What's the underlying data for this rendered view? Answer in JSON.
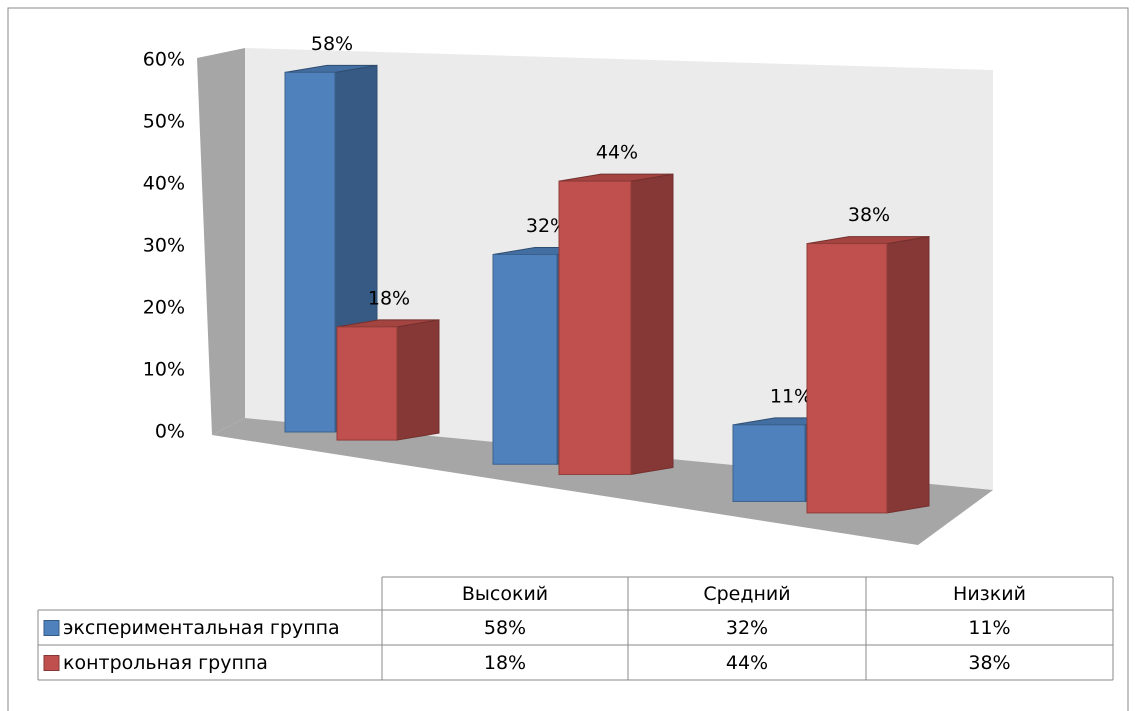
{
  "chart_data": {
    "type": "bar",
    "categories": [
      "Высокий",
      "Средний",
      "Низкий"
    ],
    "series": [
      {
        "name": "экспериментальная группа",
        "color": "#4f81bd",
        "values": [
          58,
          32,
          11
        ],
        "value_labels": [
          "58%",
          "32%",
          "11%"
        ]
      },
      {
        "name": "контрольная группа",
        "color": "#c0504d",
        "values": [
          18,
          44,
          38
        ],
        "value_labels": [
          "18%",
          "44%",
          "38%"
        ]
      }
    ],
    "ylim": [
      0,
      60
    ],
    "yticks": [
      {
        "value": 0,
        "label": "0%"
      },
      {
        "value": 10,
        "label": "10%"
      },
      {
        "value": 20,
        "label": "20%"
      },
      {
        "value": 30,
        "label": "30%"
      },
      {
        "value": 40,
        "label": "40%"
      },
      {
        "value": 50,
        "label": "50%"
      },
      {
        "value": 60,
        "label": "60%"
      }
    ],
    "data_table": true
  }
}
